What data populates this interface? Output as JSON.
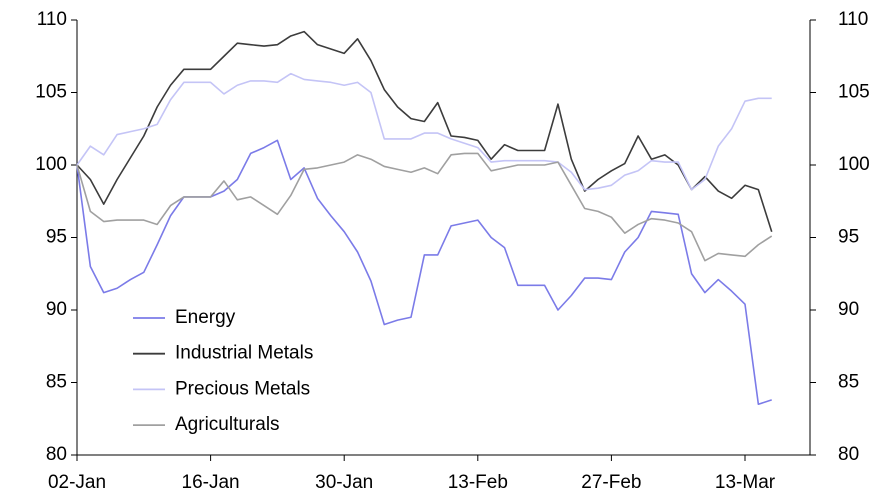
{
  "chart_data": {
    "type": "line",
    "categories": [
      "02-Jan",
      null,
      null,
      null,
      null,
      null,
      null,
      null,
      null,
      null,
      "16-Jan",
      null,
      null,
      null,
      null,
      null,
      null,
      null,
      null,
      null,
      "30-Jan",
      null,
      null,
      null,
      null,
      null,
      null,
      null,
      null,
      null,
      "13-Feb",
      null,
      null,
      null,
      null,
      null,
      null,
      null,
      null,
      null,
      "27-Feb",
      null,
      null,
      null,
      null,
      null,
      null,
      null,
      null,
      null,
      "13-Mar",
      null,
      null
    ],
    "series": [
      {
        "name": "Energy",
        "color": "#7b7be8",
        "values": [
          100,
          93,
          91.2,
          91.5,
          92.1,
          92.6,
          94.5,
          96.5,
          97.8,
          97.8,
          97.8,
          98.2,
          99.0,
          100.8,
          101.2,
          101.7,
          99.0,
          99.8,
          97.7,
          96.5,
          95.4,
          94.0,
          92.0,
          89.0,
          89.3,
          89.5,
          93.8,
          93.8,
          95.8,
          96.0,
          96.2,
          95.0,
          94.3,
          91.7,
          91.7,
          91.7,
          90.0,
          91.0,
          92.2,
          92.2,
          92.1,
          94.0,
          95.0,
          96.8,
          96.7,
          96.6,
          92.5,
          91.2,
          92.1,
          91.3,
          90.4,
          83.5,
          83.8
        ]
      },
      {
        "name": "Industrial Metals",
        "color": "#3c3c3c",
        "values": [
          100,
          99.0,
          97.3,
          99.0,
          100.5,
          102.0,
          104.0,
          105.5,
          106.6,
          106.6,
          106.6,
          107.5,
          108.4,
          108.3,
          108.2,
          108.3,
          108.9,
          109.2,
          108.3,
          108.0,
          107.7,
          108.7,
          107.2,
          105.2,
          104.0,
          103.2,
          103.0,
          104.3,
          102.0,
          101.9,
          101.7,
          100.4,
          101.4,
          101.0,
          101.0,
          101.0,
          104.2,
          100.4,
          98.2,
          99.0,
          99.6,
          100.1,
          102.0,
          100.4,
          100.7,
          100.0,
          98.3,
          99.2,
          98.2,
          97.7,
          98.6,
          98.3,
          95.4
        ]
      },
      {
        "name": "Precious Metals",
        "color": "#c4c4f6",
        "values": [
          100,
          101.3,
          100.7,
          102.1,
          102.3,
          102.5,
          102.8,
          104.5,
          105.7,
          105.7,
          105.7,
          104.9,
          105.5,
          105.8,
          105.8,
          105.7,
          106.3,
          105.9,
          105.8,
          105.7,
          105.5,
          105.7,
          105.0,
          101.8,
          101.8,
          101.8,
          102.2,
          102.2,
          101.8,
          101.5,
          101.2,
          100.2,
          100.3,
          100.3,
          100.3,
          100.3,
          100.2,
          99.5,
          98.3,
          98.4,
          98.6,
          99.3,
          99.6,
          100.3,
          100.2,
          100.2,
          98.3,
          99.0,
          101.3,
          102.5,
          104.4,
          104.6,
          104.6
        ]
      },
      {
        "name": "Agriculturals",
        "color": "#a0a0a0",
        "values": [
          100,
          96.8,
          96.1,
          96.2,
          96.2,
          96.2,
          95.9,
          97.2,
          97.8,
          97.8,
          97.8,
          98.9,
          97.6,
          97.8,
          97.2,
          96.6,
          97.9,
          99.7,
          99.8,
          100.0,
          100.2,
          100.7,
          100.4,
          99.9,
          99.7,
          99.5,
          99.8,
          99.4,
          100.7,
          100.8,
          100.8,
          99.6,
          99.8,
          100.0,
          100.0,
          100.0,
          100.2,
          98.6,
          97.0,
          96.8,
          96.4,
          95.3,
          95.9,
          96.3,
          96.2,
          96.0,
          95.4,
          93.4,
          93.9,
          93.8,
          93.7,
          94.5,
          95.1
        ]
      }
    ],
    "ylim": [
      80,
      110
    ],
    "yticks": [
      80,
      85,
      90,
      95,
      100,
      105,
      110
    ],
    "y2lim": [
      80,
      110
    ],
    "y2ticks": [
      80,
      85,
      90,
      95,
      100,
      105,
      110
    ],
    "grid": false,
    "legend": "lower left"
  }
}
